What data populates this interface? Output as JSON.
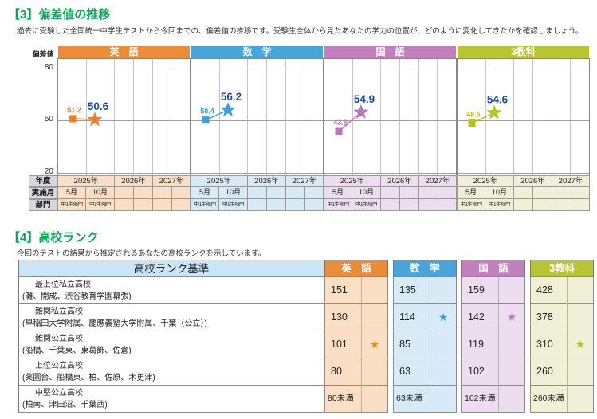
{
  "ui": {
    "accent_green": "#0FA65A",
    "value_label_color": "#1F4E9E",
    "grid_color": "#A0A0A0"
  },
  "section3": {
    "title": "【3】偏差値の推移",
    "subtitle": "過去に受験した全国統一中学生テストから今回までの、偏差値の推移です。受験生全体から見たあなたの学力の位置が、どのように変化してきたかを確認しましょう。",
    "row_labels": {
      "year": "年度",
      "month": "実施月",
      "division": "部門"
    }
  },
  "chart_data": {
    "type": "line",
    "title": "偏差値の推移",
    "ylabel": "偏差値",
    "ylim": [
      20,
      80
    ],
    "yticks": [
      80,
      50,
      20
    ],
    "x_years": [
      "2025年",
      "2026年",
      "2027年"
    ],
    "x_months": [
      "5月",
      "10月"
    ],
    "division": "中1生部門",
    "x": [
      "2025年5月",
      "2025年10月"
    ],
    "series": [
      {
        "name": "英　語",
        "values": [
          51.2,
          50.6
        ],
        "color": "#ED7D31",
        "header_color": "#EA8C3A",
        "tint": "#FADFC4"
      },
      {
        "name": "数　学",
        "values": [
          50.4,
          56.2
        ],
        "color": "#3E9EDB",
        "header_color": "#4AA4DC",
        "tint": "#D9EAF7"
      },
      {
        "name": "国　語",
        "values": [
          43.8,
          54.9
        ],
        "color": "#C173BC",
        "header_color": "#C480BE",
        "tint": "#EDDEEF"
      },
      {
        "name": "3教科",
        "values": [
          48.6,
          54.6
        ],
        "color": "#B5C41E",
        "header_color": "#B7C433",
        "tint": "#EFF0D5"
      }
    ],
    "marker_note": "square = past result, star = current result"
  },
  "section4": {
    "title": "【4】高校ランク",
    "subtitle": "今回のテストの結果から推定されるあなたの高校ランクを示しています。",
    "table": {
      "header_left": "高校ランク基準",
      "subjects": [
        "英　語",
        "数　学",
        "国　語",
        "3教科"
      ],
      "rows": [
        {
          "rank": "最上位私立高校",
          "schools": "(灘、開成、渋谷教育学園幕張)",
          "values": [
            "151",
            "135",
            "159",
            "428"
          ],
          "stars": [
            "",
            "",
            "",
            ""
          ]
        },
        {
          "rank": "難関私立高校",
          "schools": "(早稲田大学附属、慶應義塾大学附属、千葉（公立）)",
          "values": [
            "130",
            "114",
            "142",
            "378"
          ],
          "stars": [
            "",
            "★",
            "★",
            ""
          ]
        },
        {
          "rank": "難関公立高校",
          "schools": "(船橋、千葉東、東葛飾、佐倉)",
          "values": [
            "101",
            "85",
            "119",
            "310"
          ],
          "stars": [
            "★",
            "",
            "",
            "★"
          ]
        },
        {
          "rank": "上位公立高校",
          "schools": "(薬園台、船橋東、柏、佐原、木更津)",
          "values": [
            "80",
            "63",
            "102",
            "260"
          ],
          "stars": [
            "",
            "",
            "",
            ""
          ]
        },
        {
          "rank": "中堅公立高校",
          "schools": "(柏南、津田沼、千葉西)",
          "values": [
            "80未満",
            "63未満",
            "102未満",
            "260未満"
          ],
          "stars": [
            "",
            "",
            "",
            ""
          ]
        }
      ]
    }
  }
}
